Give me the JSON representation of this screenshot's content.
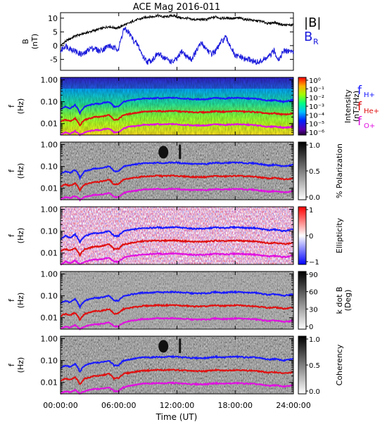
{
  "title": "ACE Mag 2016-011",
  "time_axis": {
    "label": "Time (UT)",
    "ticks": [
      "00:00:00",
      "06:00:00",
      "12:00:00",
      "18:00:00",
      "24:00:00"
    ],
    "range_hours": [
      0,
      24
    ]
  },
  "colors": {
    "B_total": "#000000",
    "B_R": "#1a1adc",
    "fH": "#1a1aff",
    "fHe": "#e01010",
    "fO": "#e010e0"
  },
  "legend": {
    "B_total": "|B|",
    "B_R": "B",
    "B_R_sub": "R",
    "fH": "f",
    "fH_sub": "H+",
    "fHe": "f",
    "fHe_sub": "He+",
    "fO": "f",
    "fO_sub": "O+"
  },
  "chart_data": [
    {
      "type": "line",
      "ylabel": "B",
      "ylabel_unit": "(nT)",
      "ylim": [
        -9,
        12
      ],
      "yticks": [
        "10",
        "5",
        "0",
        "-5"
      ],
      "yticks_values": [
        10,
        5,
        0,
        -5
      ],
      "series": [
        {
          "name": "|B|",
          "x": [
            0,
            0.5,
            1,
            1.5,
            2,
            2.5,
            3,
            3.5,
            4,
            4.5,
            5,
            5.5,
            6,
            6.5,
            7,
            7.5,
            8,
            8.5,
            9,
            9.5,
            10,
            10.5,
            11,
            11.5,
            12,
            12.5,
            13,
            13.5,
            14,
            14.5,
            15,
            15.5,
            16,
            16.5,
            17,
            17.5,
            18,
            18.5,
            19,
            19.5,
            20,
            20.5,
            21,
            21.5,
            22,
            22.5,
            23,
            23.5,
            24
          ],
          "values": [
            0,
            1.5,
            2.5,
            3.5,
            4,
            4.5,
            5,
            5.5,
            6,
            6.5,
            7,
            6.5,
            6.5,
            7.5,
            8,
            9,
            9.5,
            10,
            10.5,
            10.5,
            11,
            10.5,
            10.5,
            11,
            10.5,
            10,
            10,
            9.5,
            9.5,
            9.5,
            9.5,
            10,
            10.5,
            10,
            10,
            10,
            10,
            10,
            9.5,
            9.5,
            9,
            9,
            8.5,
            8,
            8.5,
            8,
            7.5,
            7.5,
            7.5
          ]
        },
        {
          "name": "B_R",
          "x": [
            0,
            0.5,
            1,
            1.5,
            2,
            2.5,
            3,
            3.5,
            4,
            4.5,
            5,
            5.5,
            6,
            6.5,
            7,
            7.5,
            8,
            8.5,
            9,
            9.5,
            10,
            10.5,
            11,
            11.5,
            12,
            12.5,
            13,
            13.5,
            14,
            14.5,
            15,
            15.5,
            16,
            16.5,
            17,
            17.5,
            18,
            18.5,
            19,
            19.5,
            20,
            20.5,
            21,
            21.5,
            22,
            22.5,
            23,
            23.5,
            24
          ],
          "values": [
            -2,
            0,
            -1,
            -2,
            -3,
            -3,
            -1,
            -1,
            -2,
            -1,
            0,
            -1,
            -1,
            6,
            5,
            2,
            0,
            -4,
            -6,
            -5,
            -3,
            -4,
            -5,
            -6,
            -5,
            -2,
            -4,
            -5,
            -2,
            1,
            -1,
            -3,
            -2,
            1,
            3,
            0,
            -4,
            -4,
            -5,
            -5,
            -6,
            -6,
            -5,
            -4,
            -2,
            -5,
            -2,
            -2,
            -2
          ]
        }
      ]
    },
    {
      "type": "heatmap",
      "name": "intensity",
      "ylabel": "f",
      "ylabel_unit": "(Hz)",
      "colorbar_label": "Intensity",
      "colorbar_unit": "(nT²/Hz)",
      "colorbar_ticks": [
        "10⁰",
        "10⁻¹",
        "10⁻²",
        "10⁻³",
        "10⁻⁴",
        "10⁻⁵",
        "10⁻⁶"
      ],
      "colorbar_range": [
        -6,
        0
      ],
      "colorbar_scale": "log"
    },
    {
      "type": "heatmap",
      "name": "polarization",
      "ylabel": "f",
      "ylabel_unit": "(Hz)",
      "colorbar_label": "% Polarization",
      "colorbar_ticks": [
        "1.0",
        "0.5",
        "0.0"
      ],
      "colorbar_range": [
        0,
        1
      ]
    },
    {
      "type": "heatmap",
      "name": "ellipticity",
      "ylabel": "f",
      "ylabel_unit": "(Hz)",
      "colorbar_label": "Ellipticity",
      "colorbar_ticks": [
        "1",
        "0",
        "−1"
      ],
      "colorbar_range": [
        -1,
        1
      ]
    },
    {
      "type": "heatmap",
      "name": "k_dot_B",
      "ylabel": "f",
      "ylabel_unit": "(Hz)",
      "colorbar_label": "k dot B",
      "colorbar_unit": "(Deg)",
      "colorbar_ticks": [
        "90",
        "60",
        "30",
        "0"
      ],
      "colorbar_range": [
        0,
        90
      ]
    },
    {
      "type": "heatmap",
      "name": "coherency",
      "ylabel": "f",
      "ylabel_unit": "(Hz)",
      "colorbar_label": "Coherency",
      "colorbar_ticks": [
        "1.0",
        "0.5",
        "0.0"
      ],
      "colorbar_range": [
        0,
        1
      ]
    }
  ],
  "freq_axis": {
    "ticks": [
      "1.00",
      "0.10",
      "0.01"
    ],
    "tick_values": [
      1,
      0.1,
      0.01
    ],
    "ylim": [
      0.003,
      1.3
    ],
    "scale": "log"
  },
  "gyrofrequency_lines": {
    "x": [
      0,
      0.5,
      1,
      1.5,
      2,
      2.5,
      3,
      3.5,
      4,
      4.5,
      5,
      5.5,
      6,
      6.5,
      7,
      7.5,
      8,
      8.5,
      9,
      9.5,
      10,
      10.5,
      11,
      11.5,
      12,
      12.5,
      13,
      13.5,
      14,
      14.5,
      15,
      15.5,
      16,
      16.5,
      17,
      17.5,
      18,
      18.5,
      19,
      19.5,
      20,
      20.5,
      21,
      21.5,
      22,
      22.5,
      23,
      23.5,
      24
    ],
    "fH": [
      0.045,
      0.06,
      0.05,
      0.07,
      0.03,
      0.06,
      0.07,
      0.08,
      0.08,
      0.09,
      0.1,
      0.06,
      0.06,
      0.1,
      0.11,
      0.12,
      0.13,
      0.14,
      0.14,
      0.14,
      0.15,
      0.14,
      0.15,
      0.15,
      0.15,
      0.14,
      0.14,
      0.13,
      0.13,
      0.13,
      0.13,
      0.14,
      0.15,
      0.14,
      0.14,
      0.15,
      0.15,
      0.15,
      0.14,
      0.14,
      0.14,
      0.13,
      0.12,
      0.11,
      0.12,
      0.11,
      0.1,
      0.11,
      0.12
    ],
    "fHe": [
      0.012,
      0.015,
      0.013,
      0.017,
      0.008,
      0.015,
      0.017,
      0.02,
      0.02,
      0.022,
      0.025,
      0.015,
      0.016,
      0.025,
      0.027,
      0.03,
      0.032,
      0.035,
      0.035,
      0.036,
      0.038,
      0.036,
      0.037,
      0.038,
      0.037,
      0.035,
      0.035,
      0.033,
      0.033,
      0.033,
      0.033,
      0.035,
      0.037,
      0.035,
      0.035,
      0.036,
      0.037,
      0.037,
      0.035,
      0.035,
      0.034,
      0.032,
      0.03,
      0.028,
      0.03,
      0.028,
      0.026,
      0.027,
      0.03
    ],
    "fO": [
      0.003,
      0.004,
      0.0035,
      0.0045,
      0.003,
      0.004,
      0.0045,
      0.005,
      0.005,
      0.0055,
      0.006,
      0.004,
      0.004,
      0.006,
      0.007,
      0.0075,
      0.008,
      0.0088,
      0.0088,
      0.009,
      0.0095,
      0.009,
      0.0093,
      0.0095,
      0.0093,
      0.0088,
      0.0088,
      0.0083,
      0.0083,
      0.0083,
      0.0083,
      0.0088,
      0.0093,
      0.0088,
      0.0088,
      0.009,
      0.0093,
      0.0093,
      0.0088,
      0.0088,
      0.0085,
      0.008,
      0.0075,
      0.007,
      0.0075,
      0.007,
      0.0065,
      0.0068,
      0.0075
    ]
  }
}
